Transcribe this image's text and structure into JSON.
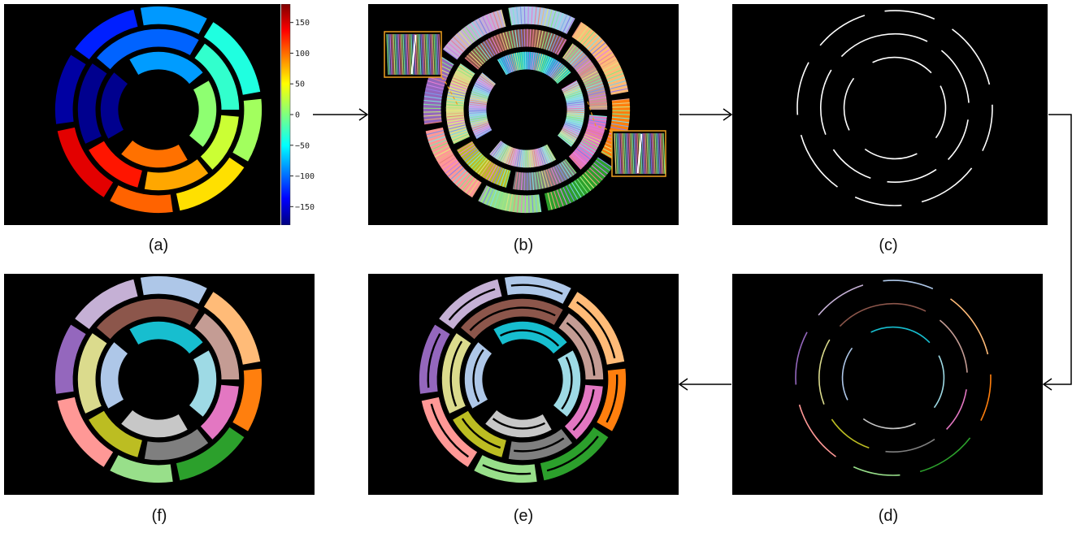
{
  "captions": {
    "a": "(a)",
    "b": "(b)",
    "c": "(c)",
    "d": "(d)",
    "e": "(e)",
    "f": "(f)"
  },
  "colorbar": {
    "ticks": [
      "150",
      "100",
      "50",
      "0",
      "−50",
      "−100",
      "−150"
    ],
    "range": [
      -180,
      180
    ],
    "colormap": "jet"
  },
  "colors": {
    "panel_background": "#000000",
    "inset_border": "#f0a020",
    "arrow": "#000000"
  },
  "segment_palette": [
    "#aec7e8",
    "#ffbb78",
    "#ff7f0e",
    "#2ca02c",
    "#98df8a",
    "#ff9896",
    "#9467bd",
    "#c5b0d5",
    "#8c564b",
    "#c49c94",
    "#e377c2",
    "#7f7f7f",
    "#bcbd22",
    "#dbdb8d",
    "#17becf",
    "#9edae5",
    "#c7c7c7"
  ]
}
